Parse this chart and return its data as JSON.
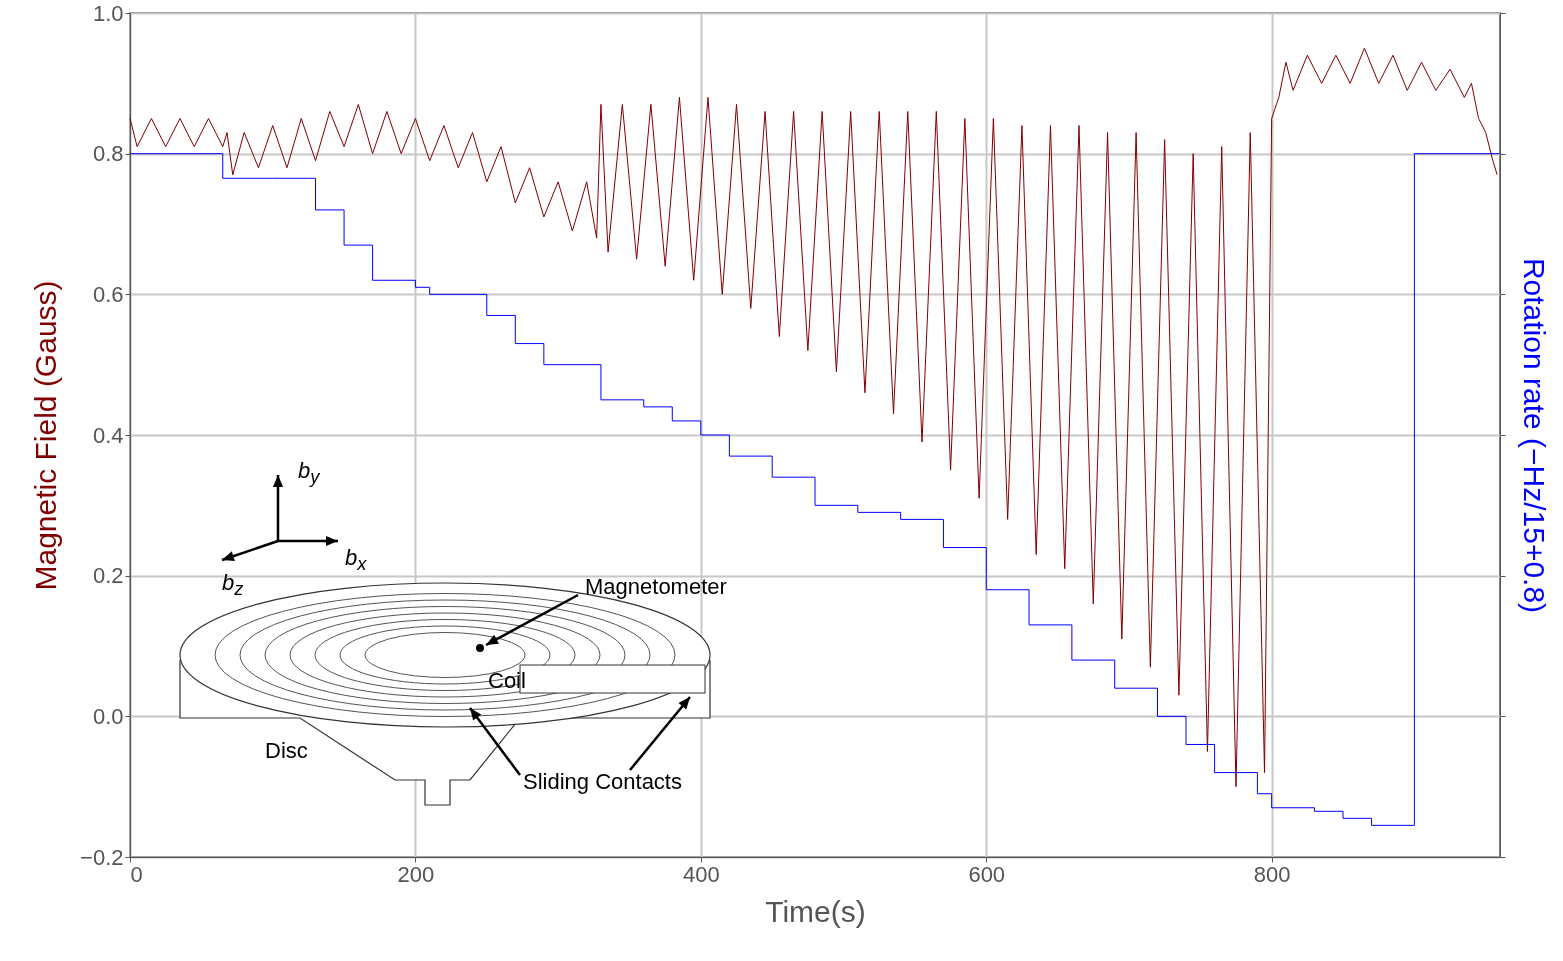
{
  "chart_data": {
    "type": "line",
    "xlabel": "Time(s)",
    "ylabel": "Magnetic Field (Gauss)",
    "y2label": "Rotation rate (−Hz/15+0.8)",
    "xlim": [
      0,
      960
    ],
    "xticks": [
      0,
      200,
      400,
      600,
      800
    ],
    "ylim": [
      -0.2,
      1.0
    ],
    "yticks": [
      {
        "value": -0.2,
        "label": "−0.2"
      },
      {
        "value": 0,
        "label": "0.0"
      },
      0.2,
      0.4,
      0.6,
      0.8,
      {
        "value": 1.0,
        "label": "1.0"
      }
    ],
    "grid": true,
    "series": [
      {
        "type": "line",
        "color": "#800000",
        "x": [
          0,
          5,
          15,
          25,
          35,
          45,
          55,
          65,
          68,
          72,
          80,
          90,
          100,
          110,
          120,
          130,
          140,
          150,
          160,
          170,
          180,
          190,
          200,
          210,
          220,
          230,
          240,
          250,
          260,
          270,
          280,
          290,
          300,
          310,
          320,
          327,
          330,
          335,
          345,
          355,
          365,
          375,
          385,
          395,
          405,
          415,
          425,
          435,
          445,
          455,
          465,
          475,
          485,
          495,
          505,
          515,
          525,
          535,
          545,
          555,
          565,
          575,
          585,
          595,
          605,
          615,
          625,
          635,
          645,
          655,
          665,
          675,
          685,
          695,
          705,
          715,
          725,
          735,
          745,
          755,
          765,
          775,
          785,
          795,
          800,
          805,
          810,
          815,
          825,
          835,
          845,
          855,
          865,
          875,
          885,
          895,
          905,
          915,
          925,
          935,
          940,
          945,
          950,
          955,
          958
        ],
        "values": [
          0.85,
          0.81,
          0.85,
          0.81,
          0.85,
          0.81,
          0.85,
          0.81,
          0.83,
          0.77,
          0.83,
          0.78,
          0.84,
          0.78,
          0.85,
          0.79,
          0.86,
          0.81,
          0.87,
          0.8,
          0.86,
          0.8,
          0.85,
          0.79,
          0.84,
          0.78,
          0.83,
          0.76,
          0.81,
          0.73,
          0.78,
          0.71,
          0.76,
          0.69,
          0.76,
          0.68,
          0.87,
          0.66,
          0.87,
          0.65,
          0.87,
          0.64,
          0.88,
          0.62,
          0.88,
          0.6,
          0.87,
          0.58,
          0.86,
          0.54,
          0.86,
          0.52,
          0.86,
          0.49,
          0.86,
          0.46,
          0.86,
          0.43,
          0.86,
          0.39,
          0.86,
          0.35,
          0.85,
          0.31,
          0.85,
          0.28,
          0.84,
          0.23,
          0.84,
          0.21,
          0.84,
          0.16,
          0.83,
          0.11,
          0.83,
          0.07,
          0.82,
          0.03,
          0.8,
          -0.05,
          0.81,
          -0.1,
          0.83,
          -0.08,
          0.85,
          0.88,
          0.93,
          0.89,
          0.94,
          0.9,
          0.94,
          0.9,
          0.95,
          0.9,
          0.94,
          0.89,
          0.93,
          0.89,
          0.92,
          0.88,
          0.9,
          0.85,
          0.83,
          0.79,
          0.77
        ]
      },
      {
        "type": "step",
        "color": "#0000ff",
        "x": [
          0,
          65,
          100,
          130,
          150,
          170,
          200,
          210,
          250,
          270,
          290,
          330,
          360,
          380,
          400,
          420,
          450,
          480,
          510,
          540,
          570,
          600,
          630,
          660,
          690,
          720,
          740,
          760,
          790,
          800,
          830,
          850,
          870,
          900,
          960
        ],
        "values": [
          0.8,
          0.765,
          0.765,
          0.72,
          0.67,
          0.62,
          0.61,
          0.6,
          0.57,
          0.53,
          0.5,
          0.45,
          0.44,
          0.42,
          0.4,
          0.37,
          0.34,
          0.3,
          0.29,
          0.28,
          0.24,
          0.18,
          0.13,
          0.08,
          0.04,
          0.0,
          -0.04,
          -0.08,
          -0.11,
          -0.13,
          -0.135,
          -0.145,
          -0.155,
          0.8,
          0.8
        ]
      }
    ],
    "annotations": [
      "Magnetometer",
      "Coil",
      "Disc",
      "Sliding Contacts",
      "b$_{x}$",
      "b$_{y}$",
      "b$_{z}$"
    ]
  }
}
